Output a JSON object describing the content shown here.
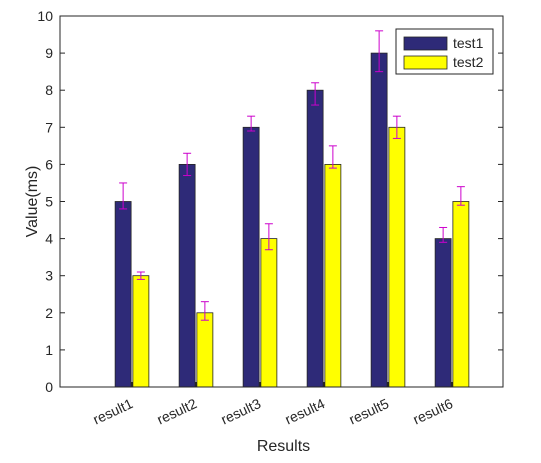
{
  "chart_data": {
    "type": "bar",
    "categories": [
      "result1",
      "result2",
      "result3",
      "result4",
      "result5",
      "result6"
    ],
    "series": [
      {
        "name": "test1",
        "color": "#2e2a78",
        "values": [
          5,
          6,
          7,
          8,
          9,
          4
        ],
        "error_lower": [
          0.2,
          0.3,
          0.1,
          0.4,
          0.5,
          0.1
        ],
        "error_upper": [
          0.5,
          0.3,
          0.3,
          0.2,
          0.6,
          0.3
        ]
      },
      {
        "name": "test2",
        "color": "#ffff00",
        "values": [
          3,
          2,
          4,
          6,
          7,
          5
        ],
        "error_lower": [
          0.1,
          0.2,
          0.3,
          0.1,
          0.3,
          0.1
        ],
        "error_upper": [
          0.1,
          0.3,
          0.4,
          0.5,
          0.3,
          0.4
        ]
      }
    ],
    "error_bar_color": "#cc00cc",
    "xlabel": "Results",
    "ylabel": "Value(ms)",
    "ylim": [
      0,
      10
    ],
    "yticks": [
      0,
      1,
      2,
      3,
      4,
      5,
      6,
      7,
      8,
      9,
      10
    ],
    "grid": false,
    "legend_position": "top-right"
  }
}
